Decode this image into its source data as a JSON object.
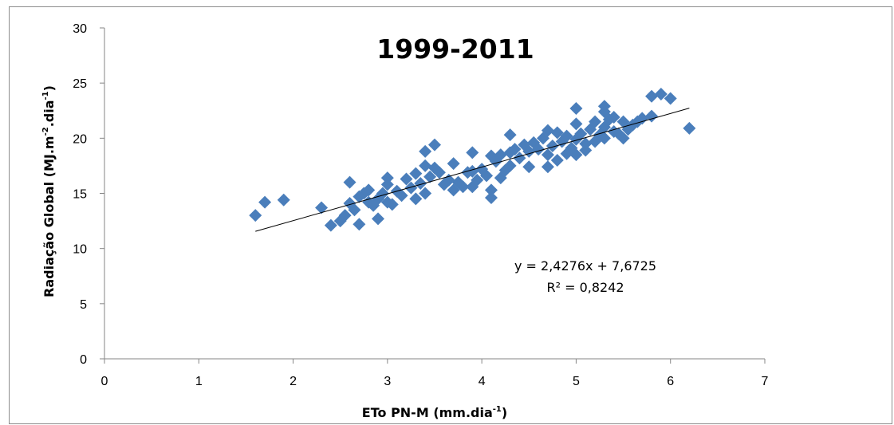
{
  "chart_data": {
    "type": "scatter",
    "title": "1999-2011",
    "xlabel_main": "ETo PN-M (mm.dia",
    "xlabel_sup": "-1",
    "xlabel_end": ")",
    "ylabel_main": "Radiação Global (MJ.m",
    "ylabel_sup1": "-2",
    "ylabel_mid": ".dia",
    "ylabel_sup2": "-1",
    "ylabel_end": ")",
    "xlim": [
      0,
      7
    ],
    "ylim": [
      0,
      30
    ],
    "xticks": [
      "0",
      "1",
      "2",
      "3",
      "4",
      "5",
      "6",
      "7"
    ],
    "yticks": [
      "0",
      "5",
      "10",
      "15",
      "20",
      "25",
      "30"
    ],
    "grid": false,
    "legend": "none",
    "marker_color": "#4a7ebb",
    "trendline": {
      "slope": 2.4276,
      "intercept": 7.6725,
      "x_range": [
        1.6,
        6.2
      ]
    },
    "equation_label": "y = 2,4276x + 7,6725",
    "r2_label": "R² = 0,8242",
    "series": [
      {
        "points": [
          [
            1.6,
            13.0
          ],
          [
            1.7,
            14.2
          ],
          [
            1.9,
            14.4
          ],
          [
            2.3,
            13.7
          ],
          [
            2.4,
            12.1
          ],
          [
            2.5,
            12.5
          ],
          [
            2.55,
            13.0
          ],
          [
            2.6,
            16.0
          ],
          [
            2.6,
            14.1
          ],
          [
            2.65,
            13.5
          ],
          [
            2.7,
            12.2
          ],
          [
            2.7,
            14.7
          ],
          [
            2.75,
            15.0
          ],
          [
            2.8,
            15.3
          ],
          [
            2.8,
            14.2
          ],
          [
            2.85,
            13.9
          ],
          [
            2.9,
            12.7
          ],
          [
            2.9,
            14.5
          ],
          [
            2.95,
            15.0
          ],
          [
            3.0,
            16.4
          ],
          [
            3.0,
            15.8
          ],
          [
            3.0,
            14.2
          ],
          [
            3.05,
            14.0
          ],
          [
            3.1,
            15.2
          ],
          [
            3.15,
            14.8
          ],
          [
            3.2,
            16.3
          ],
          [
            3.25,
            15.5
          ],
          [
            3.3,
            14.5
          ],
          [
            3.3,
            16.8
          ],
          [
            3.35,
            15.9
          ],
          [
            3.4,
            18.8
          ],
          [
            3.4,
            17.5
          ],
          [
            3.4,
            15.0
          ],
          [
            3.45,
            16.5
          ],
          [
            3.5,
            19.4
          ],
          [
            3.5,
            17.3
          ],
          [
            3.55,
            16.9
          ],
          [
            3.6,
            15.8
          ],
          [
            3.65,
            16.2
          ],
          [
            3.7,
            17.7
          ],
          [
            3.7,
            15.3
          ],
          [
            3.75,
            16.0
          ],
          [
            3.8,
            15.6
          ],
          [
            3.85,
            16.9
          ],
          [
            3.9,
            18.7
          ],
          [
            3.9,
            17.0
          ],
          [
            3.9,
            15.6
          ],
          [
            3.95,
            16.2
          ],
          [
            4.0,
            17.2
          ],
          [
            4.05,
            16.6
          ],
          [
            4.1,
            18.4
          ],
          [
            4.1,
            15.3
          ],
          [
            4.1,
            14.6
          ],
          [
            4.15,
            17.9
          ],
          [
            4.2,
            18.5
          ],
          [
            4.2,
            16.4
          ],
          [
            4.25,
            17.1
          ],
          [
            4.3,
            20.3
          ],
          [
            4.3,
            18.7
          ],
          [
            4.3,
            17.5
          ],
          [
            4.35,
            19.0
          ],
          [
            4.4,
            18.2
          ],
          [
            4.45,
            19.4
          ],
          [
            4.5,
            17.4
          ],
          [
            4.5,
            18.8
          ],
          [
            4.55,
            19.6
          ],
          [
            4.6,
            19.0
          ],
          [
            4.65,
            20.0
          ],
          [
            4.7,
            20.7
          ],
          [
            4.7,
            18.5
          ],
          [
            4.7,
            17.4
          ],
          [
            4.75,
            19.3
          ],
          [
            4.8,
            20.5
          ],
          [
            4.8,
            18.0
          ],
          [
            4.85,
            19.7
          ],
          [
            4.9,
            20.2
          ],
          [
            4.9,
            18.6
          ],
          [
            4.95,
            19.1
          ],
          [
            5.0,
            22.7
          ],
          [
            5.0,
            21.3
          ],
          [
            5.0,
            19.9
          ],
          [
            5.0,
            18.5
          ],
          [
            5.05,
            20.4
          ],
          [
            5.1,
            19.5
          ],
          [
            5.1,
            18.9
          ],
          [
            5.15,
            20.8
          ],
          [
            5.2,
            21.5
          ],
          [
            5.2,
            19.7
          ],
          [
            5.25,
            20.3
          ],
          [
            5.3,
            22.9
          ],
          [
            5.3,
            22.4
          ],
          [
            5.3,
            21.0
          ],
          [
            5.3,
            20.0
          ],
          [
            5.35,
            21.7
          ],
          [
            5.4,
            20.6
          ],
          [
            5.4,
            21.9
          ],
          [
            5.45,
            20.4
          ],
          [
            5.5,
            21.5
          ],
          [
            5.5,
            20.0
          ],
          [
            5.55,
            20.8
          ],
          [
            5.6,
            21.2
          ],
          [
            5.65,
            21.5
          ],
          [
            5.7,
            21.8
          ],
          [
            5.8,
            23.8
          ],
          [
            5.8,
            22.0
          ],
          [
            5.9,
            24.0
          ],
          [
            6.0,
            23.6
          ],
          [
            6.2,
            20.9
          ]
        ]
      }
    ]
  }
}
